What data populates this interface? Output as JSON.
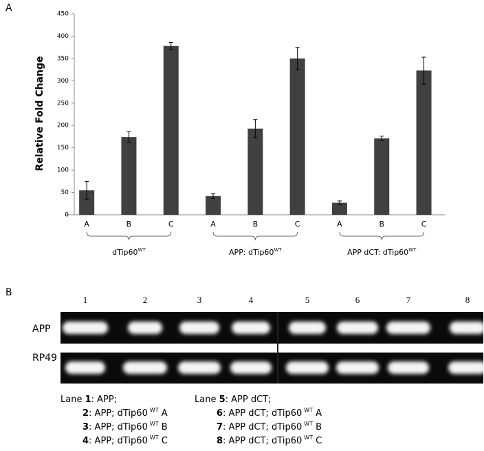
{
  "chart_data": {
    "type": "bar",
    "panel_label": "A",
    "y_label": "Relative Fold Change",
    "categories": [
      "A",
      "B",
      "C",
      "A",
      "B",
      "C",
      "A",
      "B",
      "C"
    ],
    "values": [
      55,
      174,
      378,
      42,
      193,
      350,
      27,
      171,
      323
    ],
    "errors": [
      20,
      12,
      8,
      5,
      20,
      25,
      4,
      5,
      30
    ],
    "color": "#404040",
    "groups": [
      {
        "name": "dTip60",
        "sup": "WT"
      },
      {
        "name": "APP: dTip60",
        "sup": "WT"
      },
      {
        "name": "APP dCT: dTip60",
        "sup": "WT"
      }
    ],
    "ylim": [
      0,
      450
    ],
    "yticks": [
      0,
      50,
      100,
      150,
      200,
      250,
      300,
      350,
      400,
      450
    ],
    "grid": false
  },
  "panel_b": {
    "label": "B",
    "lanes": [
      "1",
      "2",
      "3",
      "4",
      "5",
      "6",
      "7",
      "8"
    ],
    "rows": [
      "APP",
      "RP49"
    ],
    "legend": [
      {
        "lead": "Lane ",
        "num": "1",
        "text": ": APP;"
      },
      {
        "num": "2",
        "text": ": APP; dTip60",
        "sup": "WT",
        "tail": " A"
      },
      {
        "num": "3",
        "text": ": APP; dTip60",
        "sup": "WT",
        "tail": " B"
      },
      {
        "num": "4",
        "text": ": APP; dTip60",
        "sup": "WT",
        "tail": " C"
      },
      {
        "lead": "Lane ",
        "num": "5",
        "text": ": APP dCT;"
      },
      {
        "num": "6",
        "text": ": APP dCT; dTip60",
        "sup": "WT",
        "tail": " A"
      },
      {
        "num": "7",
        "text": ": APP dCT; dTip60",
        "sup": "WT",
        "tail": " B"
      },
      {
        "num": "8",
        "text": ": APP dCT; dTip60",
        "sup": "WT",
        "tail": " C"
      }
    ]
  }
}
